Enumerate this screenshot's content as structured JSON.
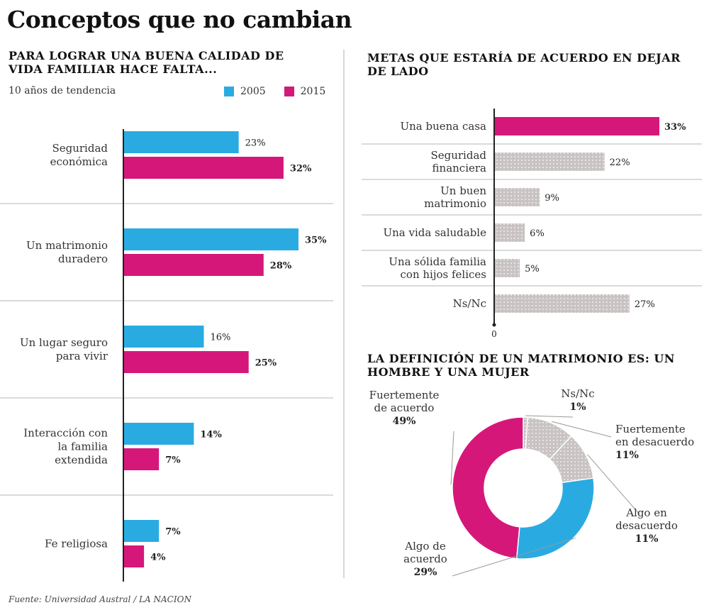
{
  "title": "Conceptos que no cambian",
  "source": "Fuente: Universidad Austral / LA NACION",
  "colors": {
    "blue": "#29abe2",
    "pink": "#d6177a",
    "gray": "#c9c3c3",
    "grid": "#cfcfcf",
    "axis": "#222222"
  },
  "chart_data": [
    {
      "type": "bar",
      "orientation": "horizontal",
      "title": "PARA LOGRAR UNA BUENA CALIDAD DE VIDA FAMILIAR HACE FALTA...",
      "subtitle": "10 años de tendencia",
      "categories": [
        [
          "Seguridad",
          "económica"
        ],
        [
          "Un matrimonio",
          "duradero"
        ],
        [
          "Un lugar seguro",
          "para vivir"
        ],
        [
          "Interacción con",
          "la familia",
          "extendida"
        ],
        [
          "Fe religiosa"
        ]
      ],
      "series": [
        {
          "name": "2005",
          "color": "#29abe2",
          "values": [
            23,
            35,
            16,
            14,
            7
          ],
          "labels": [
            "23%",
            "35%",
            "16%",
            "14%",
            "7%"
          ]
        },
        {
          "name": "2015",
          "color": "#d6177a",
          "values": [
            32,
            28,
            25,
            7,
            4
          ],
          "labels": [
            "32%",
            "28%",
            "25%",
            "7%",
            "4%"
          ]
        }
      ],
      "xlim": [
        0,
        35
      ],
      "axis_origin_label": "0",
      "legend": "top-right"
    },
    {
      "type": "bar",
      "orientation": "horizontal",
      "title": "METAS QUE ESTARÍA DE ACUERDO EN DEJAR DE LADO",
      "categories": [
        [
          "Una buena casa"
        ],
        [
          "Seguridad",
          "financiera"
        ],
        [
          "Un buen",
          "matrimonio"
        ],
        [
          "Una vida saludable"
        ],
        [
          "Una sólida familia",
          "con hijos felices"
        ],
        [
          "Ns/Nc"
        ]
      ],
      "values": [
        33,
        22,
        9,
        6,
        5,
        27
      ],
      "labels": [
        "33%",
        "22%",
        "9%",
        "6%",
        "5%",
        "27%"
      ],
      "colors": [
        "#d6177a",
        "#c9c3c3",
        "#c9c3c3",
        "#c9c3c3",
        "#c9c3c3",
        "#c9c3c3"
      ],
      "xlim": [
        0,
        33
      ],
      "axis_origin_label": "0"
    },
    {
      "type": "pie",
      "donut": true,
      "title": "LA DEFINICIÓN DE UN MATRIMONIO ES: UN HOMBRE Y UNA MUJER",
      "slices": [
        {
          "label": [
            "Ns/Nc"
          ],
          "value_label": "1%",
          "value": 1,
          "color": "#c9c3c3"
        },
        {
          "label": [
            "Fuertemente",
            "en desacuerdo"
          ],
          "value_label": "11%",
          "value": 11,
          "color": "#c9c3c3"
        },
        {
          "label": [
            "Algo en",
            "desacuerdo"
          ],
          "value_label": "11%",
          "value": 11,
          "color": "#c9c3c3"
        },
        {
          "label": [
            "Algo de",
            "acuerdo"
          ],
          "value_label": "29%",
          "value": 29,
          "color": "#29abe2"
        },
        {
          "label": [
            "Fuertemente",
            "de acuerdo"
          ],
          "value_label": "49%",
          "value": 49,
          "color": "#d6177a"
        }
      ]
    }
  ]
}
